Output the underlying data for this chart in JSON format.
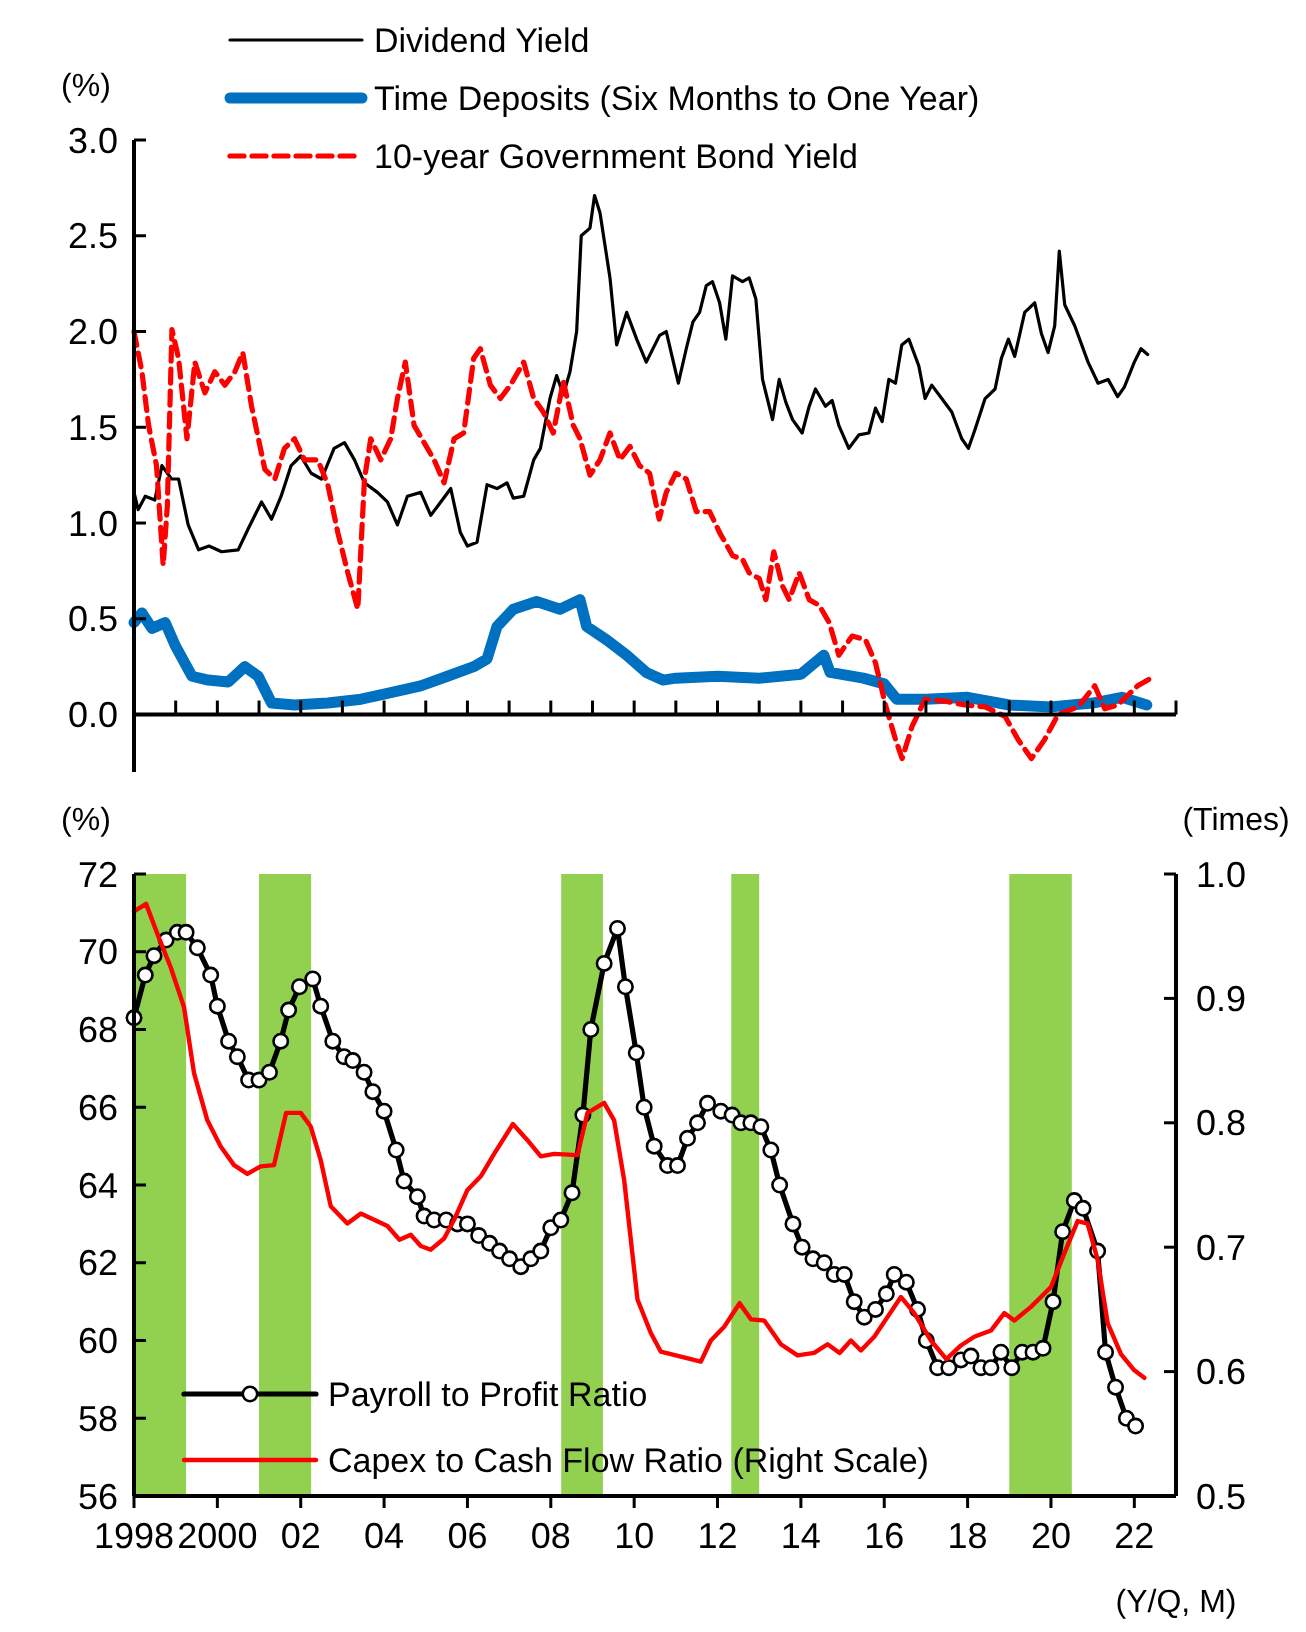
{
  "chart_data": [
    {
      "type": "line",
      "ylabel": "(%)",
      "xlim": [
        1998,
        2023
      ],
      "ylim": [
        -0.3,
        3.0
      ],
      "tick_labels": "y",
      "legend": "top",
      "xticks": [
        {
          "value": 1998,
          "label": null
        },
        {
          "value": 1999,
          "label": null
        },
        {
          "value": 2000,
          "label": null
        },
        {
          "value": 2001,
          "label": null
        },
        {
          "value": 2002,
          "label": null
        },
        {
          "value": 2003,
          "label": null
        },
        {
          "value": 2004,
          "label": null
        },
        {
          "value": 2005,
          "label": null
        },
        {
          "value": 2006,
          "label": null
        },
        {
          "value": 2007,
          "label": null
        },
        {
          "value": 2008,
          "label": null
        },
        {
          "value": 2009,
          "label": null
        },
        {
          "value": 2010,
          "label": null
        },
        {
          "value": 2011,
          "label": null
        },
        {
          "value": 2012,
          "label": null
        },
        {
          "value": 2013,
          "label": null
        },
        {
          "value": 2014,
          "label": null
        },
        {
          "value": 2015,
          "label": null
        },
        {
          "value": 2016,
          "label": null
        },
        {
          "value": 2017,
          "label": null
        },
        {
          "value": 2018,
          "label": null
        },
        {
          "value": 2019,
          "label": null
        },
        {
          "value": 2020,
          "label": null
        },
        {
          "value": 2021,
          "label": null
        },
        {
          "value": 2022,
          "label": null
        },
        {
          "value": 2023,
          "label": null
        }
      ],
      "yticks": [
        {
          "value": 0,
          "label": "0.0"
        },
        {
          "value": 0.5,
          "label": "0.5"
        },
        {
          "value": 1,
          "label": "1.0"
        },
        {
          "value": 1.5,
          "label": "1.5"
        },
        {
          "value": 2,
          "label": "2.0"
        },
        {
          "value": 2.5,
          "label": "2.5"
        },
        {
          "value": 3,
          "label": "3.0"
        }
      ],
      "series": [
        {
          "name": "Dividend Yield",
          "color": "#000000",
          "line_style": "solid",
          "x": [
            1998.0,
            1998.1,
            1998.27,
            1998.5,
            1998.67,
            1998.9,
            1999.07,
            1999.3,
            1999.55,
            1999.8,
            2000.1,
            2000.5,
            2000.74,
            2001.06,
            2001.3,
            2001.53,
            2001.77,
            2002.0,
            2002.25,
            2002.5,
            2002.8,
            2003.05,
            2003.29,
            2003.53,
            2003.84,
            2004.08,
            2004.32,
            2004.56,
            2004.88,
            2005.12,
            2005.36,
            2005.6,
            2005.83,
            2006.0,
            2006.23,
            2006.47,
            2006.71,
            2006.95,
            2007.1,
            2007.35,
            2007.59,
            2007.75,
            2007.98,
            2008.14,
            2008.3,
            2008.46,
            2008.62,
            2008.73,
            2008.94,
            2009.05,
            2009.18,
            2009.42,
            2009.58,
            2009.82,
            2010.06,
            2010.29,
            2010.61,
            2010.77,
            2011.06,
            2011.25,
            2011.41,
            2011.57,
            2011.73,
            2011.88,
            2012.05,
            2012.2,
            2012.36,
            2012.6,
            2012.76,
            2012.92,
            2013.08,
            2013.32,
            2013.48,
            2013.64,
            2013.8,
            2014.03,
            2014.2,
            2014.35,
            2014.59,
            2014.75,
            2014.91,
            2015.15,
            2015.39,
            2015.63,
            2015.79,
            2015.95,
            2016.11,
            2016.27,
            2016.42,
            2016.59,
            2016.83,
            2016.98,
            2017.14,
            2017.38,
            2017.62,
            2017.86,
            2018.02,
            2018.18,
            2018.42,
            2018.66,
            2018.81,
            2018.98,
            2019.13,
            2019.37,
            2019.61,
            2019.77,
            2019.93,
            2020.09,
            2020.2,
            2020.33,
            2020.57,
            2020.89,
            2021.13,
            2021.37,
            2021.6,
            2021.76,
            2022.0,
            2022.16,
            2022.32
          ],
          "values": [
            1.16,
            1.07,
            1.14,
            1.12,
            1.3,
            1.23,
            1.23,
            0.99,
            0.86,
            0.88,
            0.85,
            0.86,
            0.97,
            1.11,
            1.02,
            1.14,
            1.3,
            1.35,
            1.26,
            1.23,
            1.39,
            1.42,
            1.33,
            1.21,
            1.16,
            1.11,
            0.99,
            1.14,
            1.16,
            1.04,
            1.11,
            1.18,
            0.95,
            0.88,
            0.9,
            1.2,
            1.18,
            1.21,
            1.13,
            1.14,
            1.33,
            1.39,
            1.65,
            1.77,
            1.67,
            1.79,
            2.0,
            2.5,
            2.54,
            2.71,
            2.62,
            2.28,
            1.93,
            2.1,
            1.96,
            1.84,
            1.98,
            2.0,
            1.73,
            1.91,
            2.05,
            2.1,
            2.24,
            2.26,
            2.15,
            1.96,
            2.29,
            2.26,
            2.28,
            2.17,
            1.75,
            1.54,
            1.75,
            1.63,
            1.54,
            1.47,
            1.61,
            1.7,
            1.61,
            1.64,
            1.51,
            1.39,
            1.46,
            1.47,
            1.6,
            1.53,
            1.75,
            1.73,
            1.93,
            1.96,
            1.82,
            1.65,
            1.72,
            1.65,
            1.58,
            1.44,
            1.39,
            1.49,
            1.65,
            1.7,
            1.86,
            1.96,
            1.87,
            2.1,
            2.15,
            1.99,
            1.89,
            2.03,
            2.42,
            2.14,
            2.03,
            1.84,
            1.73,
            1.75,
            1.66,
            1.71,
            1.84,
            1.91,
            1.88
          ]
        },
        {
          "name": "Time Deposits (Six Months to One Year)",
          "color": "#0070c0",
          "line_style": "solid",
          "x": [
            1998.0,
            1998.19,
            1998.43,
            1998.75,
            1998.99,
            1999.39,
            1999.78,
            2000.26,
            2000.66,
            2000.98,
            2001.3,
            2001.85,
            2002.65,
            2003.45,
            2004.08,
            2004.88,
            2005.52,
            2006.15,
            2006.47,
            2006.71,
            2007.1,
            2007.66,
            2008.22,
            2008.7,
            2008.86,
            2009.34,
            2009.82,
            2010.29,
            2010.69,
            2011.0,
            2012.0,
            2013.0,
            2014.0,
            2014.55,
            2014.7,
            2015.5,
            2016.0,
            2016.3,
            2017.0,
            2018.0,
            2019.0,
            2020.0,
            2021.0,
            2021.7,
            2022.3
          ],
          "values": [
            0.48,
            0.53,
            0.45,
            0.48,
            0.36,
            0.2,
            0.18,
            0.17,
            0.25,
            0.2,
            0.06,
            0.05,
            0.06,
            0.08,
            0.11,
            0.15,
            0.2,
            0.25,
            0.29,
            0.46,
            0.55,
            0.59,
            0.55,
            0.6,
            0.46,
            0.39,
            0.31,
            0.22,
            0.18,
            0.19,
            0.2,
            0.19,
            0.21,
            0.31,
            0.22,
            0.19,
            0.16,
            0.08,
            0.08,
            0.09,
            0.05,
            0.04,
            0.06,
            0.09,
            0.05
          ]
        },
        {
          "name": "10-year Government Bond Yield",
          "color": "#ff0000",
          "line_style": "dashed",
          "x": [
            1998.0,
            1998.19,
            1998.35,
            1998.54,
            1998.7,
            1998.8,
            1998.91,
            1999.07,
            1999.27,
            1999.46,
            1999.7,
            1999.94,
            2000.18,
            2000.42,
            2000.61,
            2000.82,
            2001.14,
            2001.38,
            2001.61,
            2001.85,
            2002.09,
            2002.41,
            2002.65,
            2002.89,
            2003.13,
            2003.37,
            2003.53,
            2003.68,
            2003.92,
            2004.16,
            2004.32,
            2004.51,
            2004.72,
            2004.96,
            2005.2,
            2005.44,
            2005.68,
            2005.91,
            2006.15,
            2006.31,
            2006.55,
            2006.79,
            2007.03,
            2007.35,
            2007.59,
            2007.82,
            2008.06,
            2008.3,
            2008.54,
            2008.7,
            2008.94,
            2009.18,
            2009.42,
            2009.66,
            2009.9,
            2010.13,
            2010.37,
            2010.6,
            2010.77,
            2011.0,
            2011.25,
            2011.49,
            2011.81,
            2012.05,
            2012.36,
            2012.6,
            2012.76,
            2013.0,
            2013.16,
            2013.35,
            2013.56,
            2013.72,
            2013.96,
            2014.2,
            2014.44,
            2014.68,
            2014.91,
            2015.23,
            2015.55,
            2015.79,
            2016.03,
            2016.27,
            2016.43,
            2016.67,
            2016.98,
            2017.46,
            2017.94,
            2018.42,
            2018.9,
            2019.21,
            2019.53,
            2019.85,
            2020.17,
            2020.65,
            2021.05,
            2021.29,
            2021.6,
            2022.08,
            2022.48
          ],
          "values": [
            2.0,
            1.79,
            1.51,
            1.3,
            0.78,
            1.09,
            2.01,
            1.86,
            1.44,
            1.84,
            1.68,
            1.79,
            1.72,
            1.79,
            1.89,
            1.61,
            1.28,
            1.23,
            1.39,
            1.44,
            1.33,
            1.33,
            1.2,
            0.95,
            0.74,
            0.55,
            1.23,
            1.44,
            1.33,
            1.44,
            1.65,
            1.84,
            1.51,
            1.42,
            1.33,
            1.21,
            1.44,
            1.47,
            1.86,
            1.91,
            1.72,
            1.65,
            1.72,
            1.84,
            1.65,
            1.58,
            1.47,
            1.74,
            1.51,
            1.44,
            1.25,
            1.33,
            1.47,
            1.33,
            1.4,
            1.3,
            1.26,
            1.02,
            1.16,
            1.26,
            1.23,
            1.06,
            1.06,
            0.95,
            0.83,
            0.81,
            0.74,
            0.71,
            0.6,
            0.85,
            0.67,
            0.6,
            0.74,
            0.6,
            0.57,
            0.48,
            0.31,
            0.41,
            0.39,
            0.27,
            0.05,
            -0.13,
            -0.23,
            -0.06,
            0.08,
            0.07,
            0.05,
            0.04,
            -0.01,
            -0.13,
            -0.23,
            -0.13,
            0.0,
            0.04,
            0.15,
            0.03,
            0.05,
            0.15,
            0.2
          ]
        }
      ]
    },
    {
      "type": "line",
      "ylabel": "(%)",
      "y2label": "(Times)",
      "xlabel": "(Y/Q, M)",
      "xlim": [
        1998,
        2023
      ],
      "ylim": [
        56,
        72
      ],
      "y2lim": [
        0.5,
        1.0
      ],
      "legend": "bottom left",
      "xticks": [
        1998,
        2000,
        {
          "value": 2002,
          "label": "02"
        },
        {
          "value": 2004,
          "label": "04"
        },
        {
          "value": 2006,
          "label": "06"
        },
        {
          "value": 2008,
          "label": "08"
        },
        {
          "value": 2010,
          "label": "10"
        },
        {
          "value": 2012,
          "label": "12"
        },
        {
          "value": 2014,
          "label": "14"
        },
        {
          "value": 2016,
          "label": "16"
        },
        {
          "value": 2018,
          "label": "18"
        },
        {
          "value": 2020,
          "label": "20"
        },
        {
          "value": 2022,
          "label": "22"
        }
      ],
      "yticks": [
        56,
        58,
        60,
        62,
        64,
        66,
        68,
        70,
        72
      ],
      "y2ticks": [
        {
          "value": 0.5,
          "label": "0.5"
        },
        {
          "value": 0.6,
          "label": "0.6"
        },
        {
          "value": 0.7,
          "label": "0.7"
        },
        {
          "value": 0.8,
          "label": "0.8"
        },
        {
          "value": 0.9,
          "label": "0.9"
        },
        {
          "value": 1.0,
          "label": "1.0"
        }
      ],
      "bands": [
        {
          "axis": "x",
          "from": 1998,
          "to": 1999.25,
          "color": "#92d050"
        },
        {
          "axis": "x",
          "from": 2001.0,
          "to": 2002.25,
          "color": "#92d050"
        },
        {
          "axis": "x",
          "from": 2008.25,
          "to": 2009.25,
          "color": "#92d050"
        },
        {
          "axis": "x",
          "from": 2012.33,
          "to": 2013.0,
          "color": "#92d050"
        },
        {
          "axis": "x",
          "from": 2019.0,
          "to": 2020.5,
          "color": "#92d050"
        }
      ],
      "series": [
        {
          "name": "Payroll to Profit Ratio",
          "color": "#000000",
          "marker": "circle",
          "x": [
            1998.0,
            1998.27,
            1998.48,
            1998.77,
            1999.04,
            1999.25,
            1999.52,
            1999.84,
            2000.0,
            2000.27,
            2000.48,
            2000.75,
            2001.0,
            2001.25,
            2001.52,
            2001.71,
            2001.97,
            2002.29,
            2002.48,
            2002.77,
            2003.04,
            2003.25,
            2003.52,
            2003.73,
            2004.0,
            2004.29,
            2004.48,
            2004.8,
            2004.96,
            2005.2,
            2005.49,
            2005.76,
            2006.0,
            2006.27,
            2006.53,
            2006.77,
            2007.01,
            2007.28,
            2007.52,
            2007.76,
            2008.0,
            2008.24,
            2008.51,
            2008.77,
            2008.96,
            2009.28,
            2009.6,
            2009.79,
            2010.05,
            2010.24,
            2010.48,
            2010.8,
            2011.04,
            2011.28,
            2011.52,
            2011.76,
            2012.08,
            2012.35,
            2012.56,
            2012.8,
            2013.04,
            2013.28,
            2013.49,
            2013.81,
            2014.03,
            2014.29,
            2014.56,
            2014.8,
            2015.04,
            2015.28,
            2015.52,
            2015.79,
            2016.05,
            2016.24,
            2016.53,
            2016.8,
            2017.01,
            2017.28,
            2017.55,
            2017.84,
            2018.08,
            2018.32,
            2018.56,
            2018.8,
            2019.06,
            2019.31,
            2019.57,
            2019.81,
            2020.05,
            2020.28,
            2020.56,
            2020.77,
            2021.12,
            2021.31,
            2021.55,
            2021.81,
            2022.03
          ],
          "values": [
            68.3,
            69.4,
            69.9,
            70.3,
            70.5,
            70.5,
            70.1,
            69.4,
            68.6,
            67.7,
            67.3,
            66.7,
            66.7,
            66.9,
            67.7,
            68.5,
            69.1,
            69.3,
            68.6,
            67.7,
            67.3,
            67.2,
            66.9,
            66.4,
            65.9,
            64.9,
            64.1,
            63.7,
            63.2,
            63.1,
            63.1,
            63.0,
            63.0,
            62.7,
            62.5,
            62.3,
            62.1,
            61.9,
            62.1,
            62.3,
            62.9,
            63.1,
            63.8,
            65.8,
            68.0,
            69.7,
            70.6,
            69.1,
            67.4,
            66.0,
            65.0,
            64.5,
            64.5,
            65.2,
            65.6,
            66.1,
            65.9,
            65.8,
            65.6,
            65.6,
            65.5,
            64.9,
            64.0,
            63.0,
            62.4,
            62.1,
            62.0,
            61.7,
            61.7,
            61.0,
            60.6,
            60.8,
            61.2,
            61.7,
            61.5,
            60.8,
            60.0,
            59.3,
            59.3,
            59.5,
            59.6,
            59.3,
            59.3,
            59.7,
            59.3,
            59.7,
            59.7,
            59.8,
            61.0,
            62.8,
            63.6,
            63.4,
            62.3,
            59.7,
            58.8,
            58.0,
            57.8
          ]
        },
        {
          "name": "Capex to Cash Flow Ratio (Right Scale)",
          "color": "#ff0000",
          "axis": "y2",
          "x": [
            1998.0,
            1998.29,
            1998.56,
            1998.88,
            1999.2,
            1999.44,
            1999.76,
            2000.08,
            2000.4,
            2000.72,
            2001.04,
            2001.36,
            2001.65,
            2002.0,
            2002.24,
            2002.48,
            2002.72,
            2003.12,
            2003.44,
            2003.76,
            2004.08,
            2004.37,
            2004.64,
            2004.88,
            2005.12,
            2005.44,
            2005.68,
            2006.0,
            2006.32,
            2006.64,
            2007.09,
            2007.44,
            2007.76,
            2008.08,
            2008.64,
            2008.88,
            2009.28,
            2009.52,
            2009.76,
            2010.08,
            2010.4,
            2010.64,
            2011.12,
            2011.6,
            2011.84,
            2012.16,
            2012.53,
            2012.8,
            2013.12,
            2013.52,
            2013.92,
            2014.32,
            2014.64,
            2014.93,
            2015.2,
            2015.44,
            2015.76,
            2016.08,
            2016.4,
            2016.72,
            2017.12,
            2017.49,
            2017.84,
            2018.16,
            2018.56,
            2018.88,
            2019.12,
            2019.52,
            2019.76,
            2020.0,
            2020.32,
            2020.64,
            2020.88,
            2021.12,
            2021.36,
            2021.68,
            2022.0,
            2022.24
          ],
          "values": [
            0.97,
            0.976,
            0.952,
            0.925,
            0.893,
            0.84,
            0.802,
            0.781,
            0.766,
            0.759,
            0.765,
            0.766,
            0.808,
            0.808,
            0.797,
            0.77,
            0.733,
            0.719,
            0.727,
            0.722,
            0.717,
            0.706,
            0.71,
            0.701,
            0.698,
            0.707,
            0.722,
            0.746,
            0.757,
            0.775,
            0.799,
            0.786,
            0.773,
            0.775,
            0.774,
            0.808,
            0.816,
            0.802,
            0.754,
            0.658,
            0.631,
            0.616,
            0.612,
            0.608,
            0.625,
            0.636,
            0.655,
            0.642,
            0.641,
            0.622,
            0.613,
            0.615,
            0.622,
            0.615,
            0.625,
            0.617,
            0.628,
            0.644,
            0.66,
            0.647,
            0.625,
            0.61,
            0.621,
            0.628,
            0.633,
            0.647,
            0.641,
            0.652,
            0.66,
            0.668,
            0.695,
            0.721,
            0.719,
            0.69,
            0.639,
            0.614,
            0.601,
            0.595
          ]
        }
      ]
    }
  ]
}
